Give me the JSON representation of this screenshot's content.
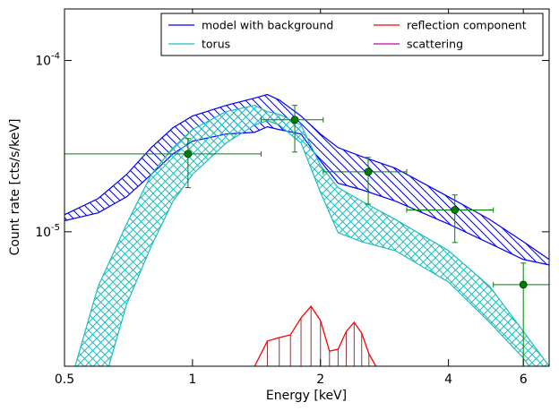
{
  "chart_data": {
    "type": "band",
    "xlabel": "Energy [keV]",
    "ylabel": "Count rate [cts/s/keV]",
    "xscale": "log",
    "yscale": "log",
    "xlim": [
      0.5,
      6.9
    ],
    "ylim": [
      1.64e-06,
      0.0002
    ],
    "xticks": [
      0.5,
      1,
      2,
      4,
      6
    ],
    "yticks": [
      {
        "value": 1e-05,
        "label": "10",
        "exponent": "-5"
      },
      {
        "value": 0.0001,
        "label": "10",
        "exponent": "-4"
      }
    ],
    "legend": "upper right",
    "legend_columns": 2,
    "x": [
      0.5,
      0.6,
      0.7,
      0.8,
      0.9,
      1.0,
      1.2,
      1.4,
      1.5,
      1.6,
      1.8,
      2.0,
      2.2,
      2.5,
      3,
      4,
      5,
      6,
      6.9
    ],
    "series": [
      {
        "name": "model with background",
        "color": "#0000ff",
        "kind": "band",
        "hatch": "diagonal",
        "upper": [
          1.257e-05,
          1.563e-05,
          2.16e-05,
          3.1e-05,
          4.05e-05,
          4.74e-05,
          5.47e-05,
          6.03e-05,
          6.33e-05,
          5.88e-05,
          4.74e-05,
          3.72e-05,
          3.1e-05,
          2.75e-05,
          2.35e-05,
          1.6e-05,
          1.18e-05,
          8.75e-06,
          6.89e-06
        ],
        "lower": [
          1.16e-05,
          1.29e-05,
          1.6e-05,
          2.16e-05,
          2.85e-05,
          3.38e-05,
          3.72e-05,
          3.81e-05,
          4.1e-05,
          3.95e-05,
          3.72e-05,
          2.59e-05,
          1.92e-05,
          1.76e-05,
          1.51e-05,
          1.11e-05,
          8.55e-06,
          6.89e-06,
          6.4e-06
        ]
      },
      {
        "name": "torus",
        "color": "#1fbcbc",
        "kind": "band",
        "hatch": "cross",
        "upper": [
          1e-06,
          4.8e-06,
          1.11e-05,
          2.16e-05,
          3.1e-05,
          3.95e-05,
          5.03e-05,
          5.47e-05,
          5.03e-05,
          4.85e-05,
          4.2e-05,
          2.44e-05,
          1.81e-05,
          1.51e-05,
          1.18e-05,
          7.76e-06,
          4.8e-06,
          2.62e-06,
          1.64e-06
        ],
        "lower": [
          1e-06,
          1e-06,
          3.77e-06,
          8.24e-06,
          1.51e-05,
          2.16e-05,
          3.3e-05,
          4.2e-05,
          4.46e-05,
          4.2e-05,
          3.3e-05,
          1.7e-05,
          9.88e-06,
          8.75e-06,
          7.76e-06,
          5.09e-06,
          2.96e-06,
          1.83e-06,
          1.13e-06
        ]
      },
      {
        "name": "reflection component",
        "color": "#ff0000",
        "kind": "line",
        "x": [
          1.4,
          1.5,
          1.6,
          1.7,
          1.8,
          1.9,
          2.0,
          2.1,
          2.2,
          2.3,
          2.4,
          2.5,
          2.6,
          2.7
        ],
        "values": [
          1.64e-06,
          2.3e-06,
          2.41e-06,
          2.5e-06,
          3.14e-06,
          3.67e-06,
          3.03e-06,
          2.01e-06,
          2.06e-06,
          2.62e-06,
          2.96e-06,
          2.56e-06,
          1.94e-06,
          1.64e-06
        ]
      },
      {
        "name": "scattering",
        "color": "#bf00bf",
        "kind": "line"
      }
    ],
    "data_points": {
      "color": "#008000",
      "x": [
        0.976,
        1.74,
        2.59,
        4.14,
        6.0
      ],
      "y": [
        2.85e-05,
        4.51e-05,
        2.24e-05,
        1.34e-05,
        4.91e-06
      ],
      "xlow": [
        0.5,
        1.45,
        2.03,
        3.19,
        5.1
      ],
      "xhigh": [
        1.45,
        2.03,
        3.19,
        5.1,
        6.9
      ],
      "ylow": [
        1.81e-05,
        2.92e-05,
        1.45e-05,
        8.65e-06,
        1.64e-06
      ],
      "yhigh": [
        3.5e-05,
        5.47e-05,
        2.72e-05,
        1.64e-05,
        6.56e-06
      ]
    }
  }
}
